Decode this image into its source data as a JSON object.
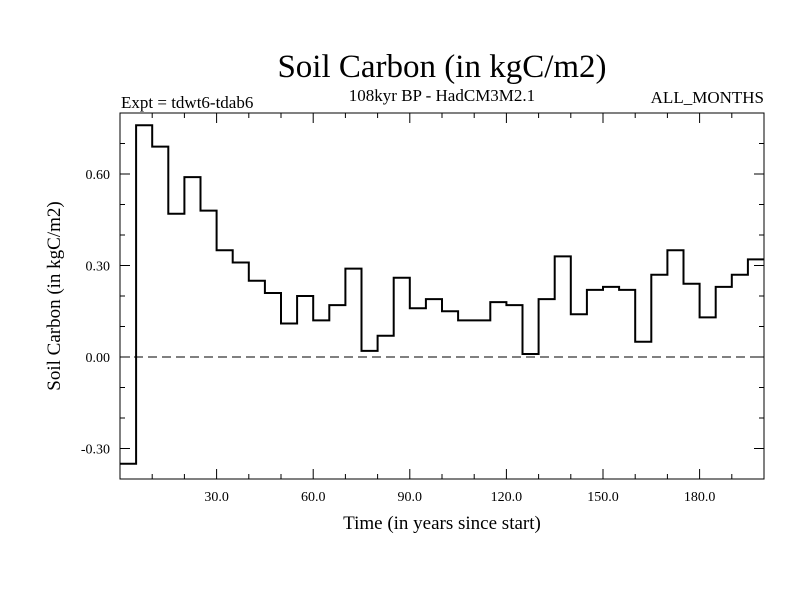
{
  "chart_data": {
    "type": "line",
    "title": "Soil Carbon (in kgC/m2)",
    "subtitle": "108kyr BP - HadCM3M2.1",
    "left_note": "Expt = tdwt6-tdab6",
    "right_note": "ALL_MONTHS",
    "xlabel": "Time (in years since start)",
    "ylabel": "Soil Carbon (in kgC/m2)",
    "xlim": [
      0,
      200
    ],
    "ylim": [
      -0.4,
      0.8
    ],
    "xticks": [
      30,
      60,
      90,
      120,
      150,
      180
    ],
    "xtick_labels": [
      "30.0",
      "60.0",
      "90.0",
      "120.0",
      "150.0",
      "180.0"
    ],
    "yticks": [
      -0.3,
      0.0,
      0.3,
      0.6
    ],
    "ytick_labels": [
      "-0.30",
      "0.00",
      "0.30",
      "0.60"
    ],
    "zero_line": true,
    "grid": false,
    "step_width": 5,
    "series": [
      {
        "x": [
          0,
          5,
          10,
          15,
          20,
          25,
          30,
          35,
          40,
          45,
          50,
          55,
          60,
          65,
          70,
          75,
          80,
          85,
          90,
          95,
          100,
          105,
          110,
          115,
          120,
          125,
          130,
          135,
          140,
          145,
          150,
          155,
          160,
          165,
          170,
          175,
          180,
          185,
          190,
          195
        ],
        "y": [
          -0.35,
          0.76,
          0.69,
          0.47,
          0.59,
          0.48,
          0.35,
          0.31,
          0.25,
          0.21,
          0.11,
          0.2,
          0.12,
          0.17,
          0.29,
          0.02,
          0.07,
          0.26,
          0.16,
          0.19,
          0.15,
          0.12,
          0.12,
          0.18,
          0.17,
          0.01,
          0.19,
          0.33,
          0.14,
          0.22,
          0.23,
          0.22,
          0.05,
          0.27,
          0.35,
          0.24,
          0.13,
          0.23,
          0.27,
          0.32
        ]
      }
    ]
  }
}
